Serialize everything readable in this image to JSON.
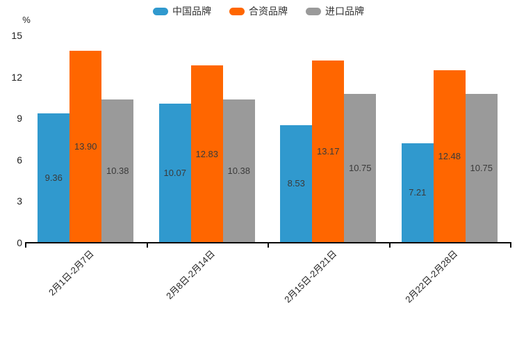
{
  "chart_data": {
    "type": "bar",
    "title": "",
    "unit": "%",
    "categories": [
      "2月1日-2月7日",
      "2月8日-2月14日",
      "2月15日-2月21日",
      "2月22日-2月28日"
    ],
    "series": [
      {
        "name": "中国品牌",
        "color": "#3099CE",
        "values": [
          9.36,
          10.07,
          8.53,
          7.21
        ],
        "labels": [
          "9.36",
          "10.07",
          "8.53",
          "7.21"
        ]
      },
      {
        "name": "合资品牌",
        "color": "#FF6600",
        "values": [
          13.9,
          12.83,
          13.17,
          12.48
        ],
        "labels": [
          "13.90",
          "12.83",
          "13.17",
          "12.48"
        ]
      },
      {
        "name": "进口品牌",
        "color": "#9A9A9A",
        "values": [
          10.38,
          10.38,
          10.75,
          10.75
        ],
        "labels": [
          "10.38",
          "10.38",
          "10.75",
          "10.75"
        ]
      }
    ],
    "ylim": [
      0,
      15
    ],
    "yticks": [
      0,
      3,
      6,
      9,
      12,
      15
    ],
    "legend_position": "top",
    "grid": false,
    "value_label_color": "#3a3a3a",
    "axis_color": "#0a0a0a",
    "text_color": "#222222"
  }
}
